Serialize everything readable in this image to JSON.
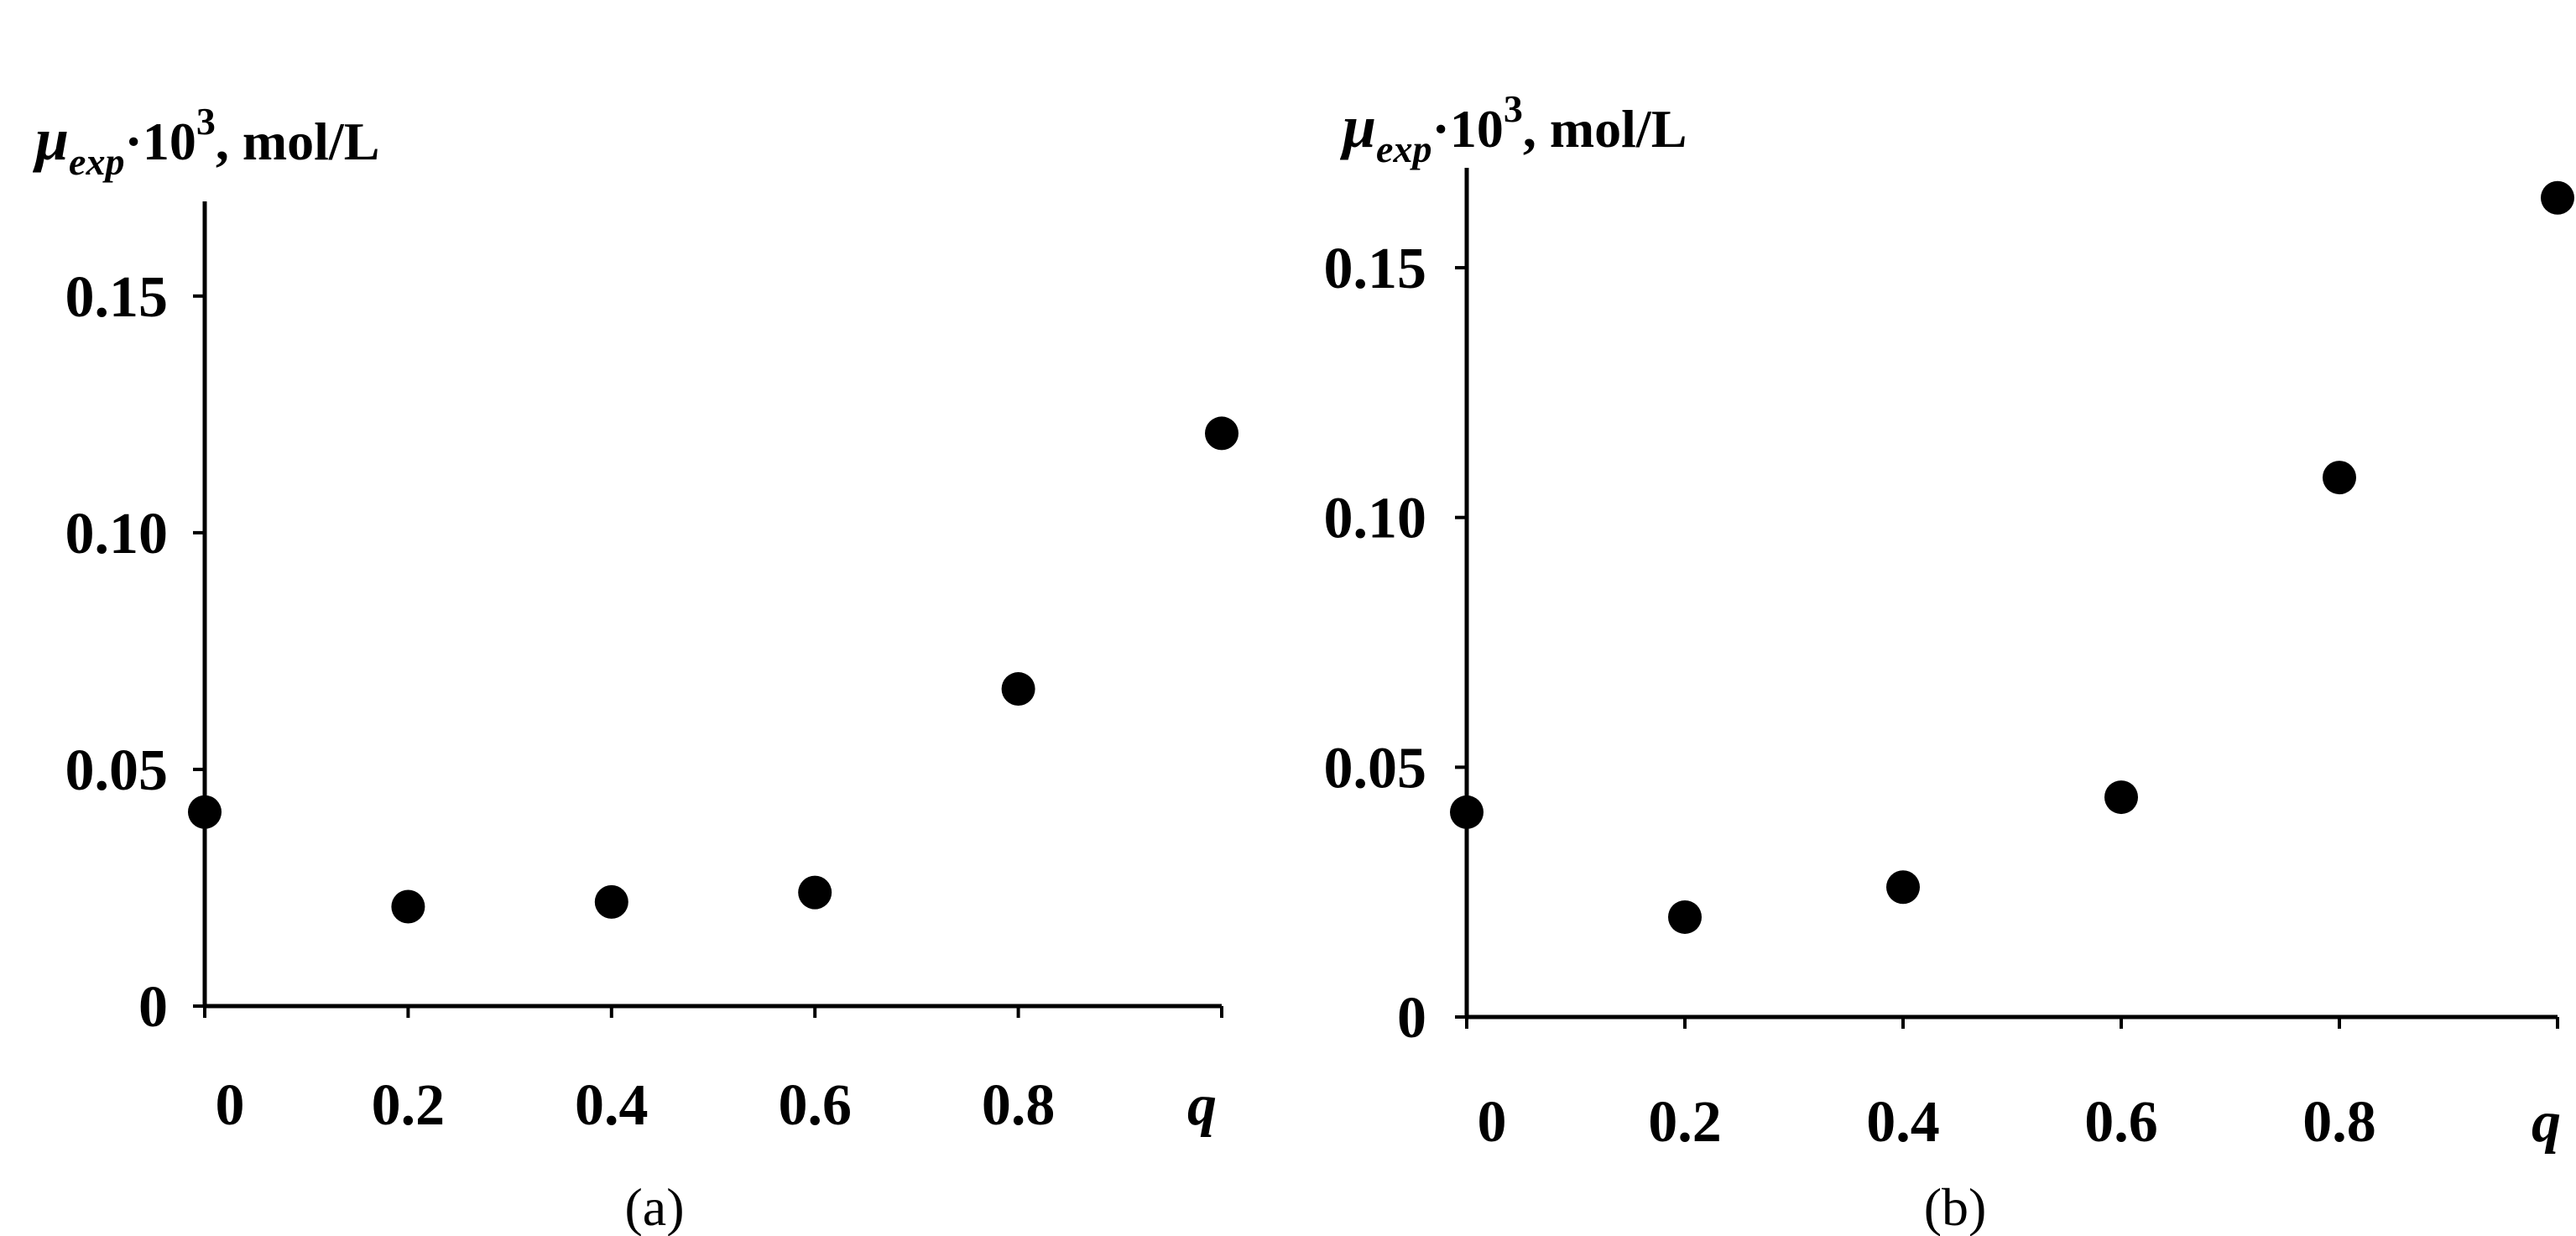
{
  "ylabel": {
    "symbol": "μ",
    "subscript": "exp",
    "middle": "·10",
    "superscript": "3",
    "suffix": ", mol/L"
  },
  "chart_data": [
    {
      "type": "scatter",
      "panel_label": "(a)",
      "xlabel": "q",
      "x_ticks": [
        "0",
        "0.2",
        "0.4",
        "0.6",
        "0.8"
      ],
      "y_ticks": [
        "0",
        "0.05",
        "0.10",
        "0.15"
      ],
      "xlim": [
        0,
        1.0
      ],
      "ylim": [
        0,
        0.17
      ],
      "x": [
        0,
        0.2,
        0.4,
        0.6,
        0.8,
        1.0
      ],
      "y": [
        0.041,
        0.021,
        0.022,
        0.024,
        0.067,
        0.121
      ],
      "color": "#000000"
    },
    {
      "type": "scatter",
      "panel_label": "(b)",
      "xlabel": "q",
      "x_ticks": [
        "0",
        "0.2",
        "0.4",
        "0.6",
        "0.8"
      ],
      "y_ticks": [
        "0",
        "0.05",
        "0.10",
        "0.15"
      ],
      "xlim": [
        0,
        1.0
      ],
      "ylim": [
        0,
        0.17
      ],
      "x": [
        0,
        0.2,
        0.4,
        0.6,
        0.8,
        1.0
      ],
      "y": [
        0.041,
        0.02,
        0.026,
        0.044,
        0.108,
        0.164
      ],
      "color": "#000000"
    }
  ]
}
